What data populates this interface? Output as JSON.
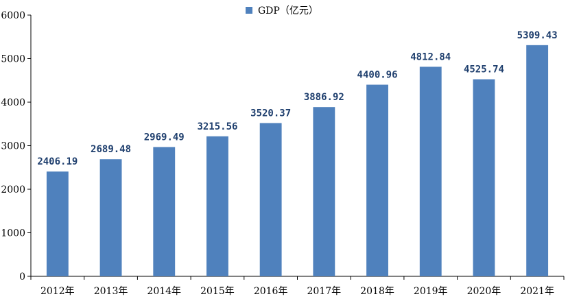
{
  "chart_data": {
    "type": "bar",
    "categories": [
      "2012年",
      "2013年",
      "2014年",
      "2015年",
      "2016年",
      "2017年",
      "2018年",
      "2019年",
      "2020年",
      "2021年"
    ],
    "series": [
      {
        "name": "GDP（亿元）",
        "values": [
          2406.19,
          2689.48,
          2969.49,
          3215.56,
          3520.37,
          3886.92,
          4400.96,
          4812.84,
          4525.74,
          5309.43
        ],
        "labels": [
          "2406.19",
          "2689.48",
          "2969.49",
          "3215.56",
          "3520.37",
          "3886.92",
          "4400.96",
          "4812.84",
          "4525.74",
          "5309.43"
        ],
        "color": "#4f81bd"
      }
    ],
    "yticks": [
      0,
      1000,
      2000,
      3000,
      4000,
      5000,
      6000
    ],
    "ylim": [
      0,
      6000
    ],
    "title": "",
    "xlabel": "",
    "ylabel": "",
    "grid": false,
    "legend": "top-center"
  }
}
